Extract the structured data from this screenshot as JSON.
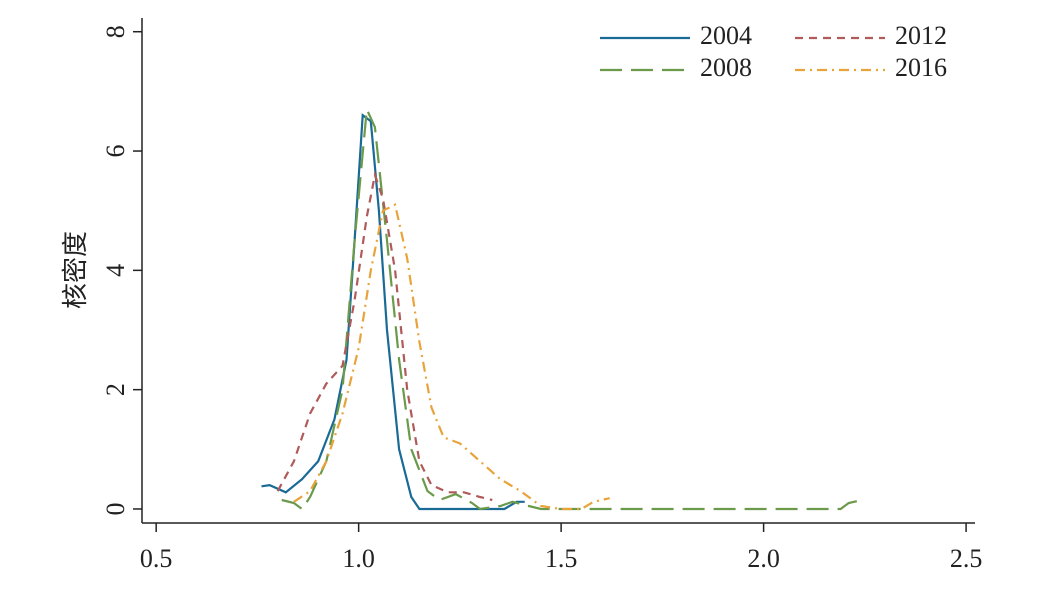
{
  "chart_data": {
    "type": "line",
    "ylabel": "核密度",
    "xlim": [
      0.465,
      2.522
    ],
    "ylim": [
      -0.235,
      8.23
    ],
    "xticks": [
      0.5,
      {
        "value": 1,
        "label": "1.0"
      },
      1.5,
      {
        "value": 2,
        "label": "2.0"
      },
      2.5
    ],
    "yticks": [
      0,
      2,
      4,
      6,
      8
    ],
    "grid": false,
    "legend": "top-right",
    "series": [
      {
        "name": "2004",
        "color": "#1a6a96",
        "dash": "solid",
        "x": [
          0.76,
          0.78,
          0.82,
          0.86,
          0.9,
          0.94,
          0.97,
          0.99,
          1.01,
          1.03,
          1.05,
          1.07,
          1.1,
          1.13,
          1.15,
          1.3,
          1.36,
          1.39,
          1.41
        ],
        "values": [
          0.38,
          0.4,
          0.28,
          0.5,
          0.8,
          1.5,
          2.5,
          4.5,
          6.6,
          6.5,
          5.0,
          3.0,
          1.0,
          0.2,
          0.0,
          0.0,
          0.0,
          0.12,
          0.12
        ]
      },
      {
        "name": "2008",
        "color": "#6a9a4a",
        "dash": "longdash",
        "x": [
          0.81,
          0.84,
          0.86,
          0.88,
          0.92,
          0.96,
          0.99,
          1.02,
          1.04,
          1.07,
          1.1,
          1.13,
          1.17,
          1.2,
          1.24,
          1.28,
          1.3,
          1.35,
          1.38,
          1.42,
          1.45,
          2.19,
          2.21,
          2.23
        ],
        "values": [
          0.15,
          0.1,
          0.0,
          0.2,
          0.8,
          2.0,
          4.5,
          6.7,
          6.4,
          4.5,
          2.5,
          1.0,
          0.3,
          0.15,
          0.25,
          0.1,
          0.0,
          0.05,
          0.12,
          0.05,
          0.0,
          0.0,
          0.1,
          0.13
        ]
      },
      {
        "name": "2012",
        "color": "#b05a5a",
        "dash": "shortdash",
        "x": [
          0.8,
          0.84,
          0.88,
          0.92,
          0.96,
          0.99,
          1.02,
          1.04,
          1.06,
          1.09,
          1.12,
          1.15,
          1.18,
          1.22,
          1.26,
          1.3,
          1.33
        ],
        "values": [
          0.3,
          0.8,
          1.6,
          2.1,
          2.4,
          3.5,
          4.9,
          5.6,
          5.2,
          4.0,
          2.0,
          0.8,
          0.4,
          0.28,
          0.28,
          0.2,
          0.15
        ]
      },
      {
        "name": "2016",
        "color": "#e8a33a",
        "dash": "dashdot",
        "x": [
          0.84,
          0.88,
          0.92,
          0.96,
          1.0,
          1.03,
          1.06,
          1.09,
          1.12,
          1.15,
          1.18,
          1.21,
          1.25,
          1.3,
          1.35,
          1.4,
          1.45,
          1.5,
          1.55,
          1.58,
          1.62
        ],
        "values": [
          0.12,
          0.3,
          0.8,
          1.6,
          2.7,
          4.0,
          5.0,
          5.1,
          4.2,
          2.8,
          1.7,
          1.2,
          1.1,
          0.8,
          0.5,
          0.3,
          0.05,
          0.0,
          0.0,
          0.12,
          0.18
        ]
      }
    ]
  }
}
